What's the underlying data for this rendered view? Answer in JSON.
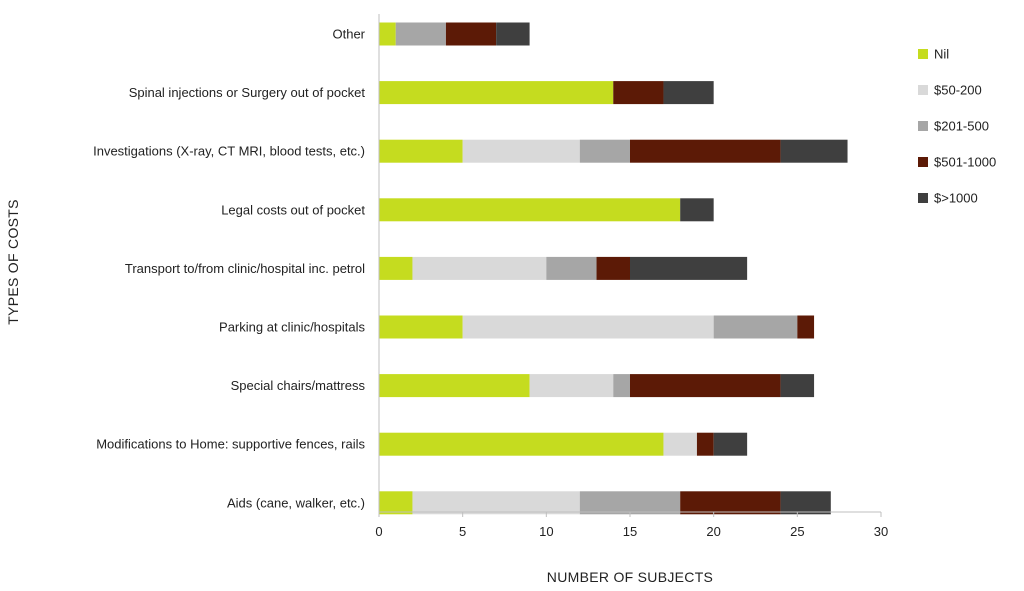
{
  "chart_data": {
    "type": "bar",
    "orientation": "horizontal",
    "stacked": true,
    "title": "",
    "xlabel": "NUMBER OF SUBJECTS",
    "ylabel": "TYPES OF COSTS",
    "xlim": [
      0,
      30
    ],
    "xticks": [
      "0",
      "5",
      "10",
      "15",
      "20",
      "25",
      "30"
    ],
    "grid": false,
    "legend_position": "right",
    "categories": [
      "Other",
      "Spinal injections or Surgery out of pocket",
      "Investigations (X-ray, CT MRI, blood tests, etc.)",
      "Legal costs out of pocket",
      "Transport to/from clinic/hospital inc. petrol",
      "Parking at clinic/hospitals",
      "Special chairs/mattress",
      "Modifications to Home: supportive fences, rails",
      "Aids (cane, walker, etc.)"
    ],
    "series": [
      {
        "name": "Nil",
        "color": "#c5dc1f",
        "values": [
          1,
          14,
          5,
          18,
          2,
          5,
          9,
          17,
          2
        ]
      },
      {
        "name": "$50-200",
        "color": "#d9d9d9",
        "values": [
          0,
          0,
          7,
          0,
          8,
          15,
          5,
          2,
          10
        ]
      },
      {
        "name": "$201-500",
        "color": "#a6a6a6",
        "values": [
          3,
          0,
          3,
          0,
          3,
          5,
          1,
          0,
          6
        ]
      },
      {
        "name": "$501-1000",
        "color": "#5c1a06",
        "values": [
          3,
          3,
          9,
          0,
          2,
          1,
          9,
          1,
          6
        ]
      },
      {
        "name": "$>1000",
        "color": "#3f3f3f",
        "values": [
          2,
          3,
          4,
          2,
          7,
          0,
          2,
          2,
          3
        ]
      }
    ]
  }
}
